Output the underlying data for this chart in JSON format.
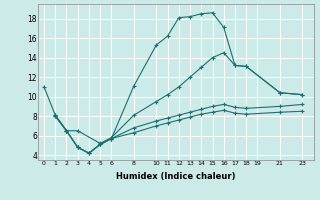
{
  "xlabel": "Humidex (Indice chaleur)",
  "background_color": "#cceae8",
  "line_color": "#1a7070",
  "grid_color": "#ffffff",
  "xlim": [
    -0.5,
    24
  ],
  "ylim": [
    3.5,
    19.5
  ],
  "xticks": [
    0,
    1,
    2,
    3,
    4,
    5,
    6,
    8,
    10,
    11,
    12,
    13,
    14,
    15,
    16,
    17,
    18,
    19,
    21,
    23
  ],
  "yticks": [
    4,
    6,
    8,
    10,
    12,
    14,
    16,
    18
  ],
  "line1_x": [
    1,
    2,
    3,
    4,
    5,
    6,
    8,
    10,
    11,
    12,
    13,
    14,
    15,
    16,
    17,
    18,
    21,
    23
  ],
  "line1_y": [
    8.1,
    6.5,
    4.8,
    4.2,
    5.1,
    5.7,
    11.1,
    15.3,
    16.2,
    18.1,
    18.2,
    18.5,
    18.6,
    17.1,
    13.2,
    13.1,
    10.4,
    10.2
  ],
  "line2_x": [
    0,
    1,
    2,
    3,
    5,
    6,
    8,
    10,
    11,
    12,
    13,
    14,
    15,
    16,
    17,
    18,
    21,
    23
  ],
  "line2_y": [
    11.0,
    8.1,
    6.5,
    6.5,
    5.2,
    5.8,
    8.1,
    9.5,
    10.2,
    11.0,
    12.0,
    13.0,
    14.0,
    14.5,
    13.2,
    13.1,
    10.4,
    10.2
  ],
  "line3_x": [
    1,
    2,
    3,
    4,
    5,
    6,
    8,
    10,
    11,
    12,
    13,
    14,
    15,
    16,
    17,
    18,
    21,
    23
  ],
  "line3_y": [
    8.0,
    6.5,
    4.8,
    4.2,
    5.1,
    5.7,
    6.8,
    7.5,
    7.8,
    8.1,
    8.4,
    8.7,
    9.0,
    9.2,
    8.9,
    8.8,
    9.0,
    9.2
  ],
  "line4_x": [
    1,
    2,
    3,
    4,
    5,
    6,
    8,
    10,
    11,
    12,
    13,
    14,
    15,
    16,
    17,
    18,
    21,
    23
  ],
  "line4_y": [
    8.0,
    6.5,
    4.8,
    4.2,
    5.1,
    5.7,
    6.3,
    7.0,
    7.3,
    7.6,
    7.9,
    8.2,
    8.4,
    8.6,
    8.3,
    8.2,
    8.4,
    8.5
  ]
}
